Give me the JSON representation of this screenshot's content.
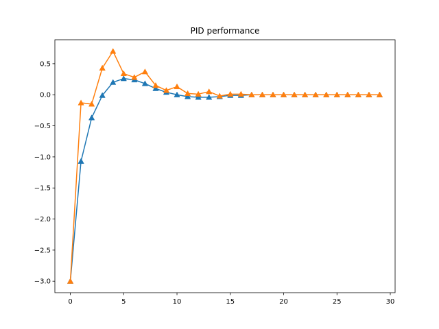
{
  "chart_data": {
    "type": "line",
    "title": "PID performance",
    "xlabel": "",
    "ylabel": "",
    "xlim": [
      -1.45,
      30.45
    ],
    "ylim": [
      -3.185,
      0.885
    ],
    "grid": false,
    "legend": "none",
    "x_ticks": [
      0,
      5,
      10,
      15,
      20,
      25,
      30
    ],
    "x_tick_labels": [
      "0",
      "5",
      "10",
      "15",
      "20",
      "25",
      "30"
    ],
    "y_ticks": [
      0.5,
      0.0,
      -0.5,
      -1.0,
      -1.5,
      -2.0,
      -2.5,
      -3.0
    ],
    "y_tick_labels": [
      "0.5",
      "0.0",
      "−0.5",
      "−1.0",
      "−1.5",
      "−2.0",
      "−2.5",
      "−3.0"
    ],
    "x": [
      0,
      1,
      2,
      3,
      4,
      5,
      6,
      7,
      8,
      9,
      10,
      11,
      12,
      13,
      14,
      15,
      16,
      17,
      18,
      19,
      20,
      21,
      22,
      23,
      24,
      25,
      26,
      27,
      28,
      29
    ],
    "series": [
      {
        "color": "#1f77b4",
        "marker": "triangle",
        "values": [
          -3.0,
          -1.07,
          -0.37,
          -0.01,
          0.2,
          0.26,
          0.24,
          0.18,
          0.1,
          0.04,
          0.0,
          -0.03,
          -0.04,
          -0.04,
          -0.03,
          -0.01,
          -0.01,
          0.0,
          0.0,
          0.0,
          0.0,
          0.0,
          0.0,
          0.0,
          0.0,
          0.0,
          0.0,
          0.0,
          0.0,
          0.0
        ]
      },
      {
        "color": "#ff7f0e",
        "marker": "triangle",
        "values": [
          -3.0,
          -0.13,
          -0.15,
          0.43,
          0.7,
          0.34,
          0.28,
          0.37,
          0.15,
          0.07,
          0.13,
          0.02,
          0.01,
          0.05,
          -0.02,
          0.01,
          0.01,
          0.0,
          0.0,
          0.0,
          0.0,
          0.0,
          0.0,
          0.0,
          0.0,
          0.0,
          0.0,
          0.0,
          0.0,
          0.0
        ]
      }
    ]
  }
}
